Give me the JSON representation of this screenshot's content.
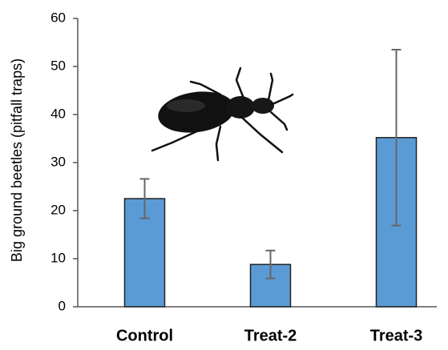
{
  "chart_data": {
    "type": "bar",
    "ylabel": "Big ground beetles (pitfall traps)",
    "categories": [
      "Control",
      "Treat-2",
      "Treat-3"
    ],
    "values": [
      22.5,
      8.8,
      35.2
    ],
    "errors": [
      4.1,
      2.9,
      18.3
    ],
    "color": "#5b9bd5",
    "ylim": [
      0,
      60
    ],
    "yticks": [
      0,
      10,
      20,
      30,
      40,
      50,
      60
    ],
    "grid": false
  }
}
